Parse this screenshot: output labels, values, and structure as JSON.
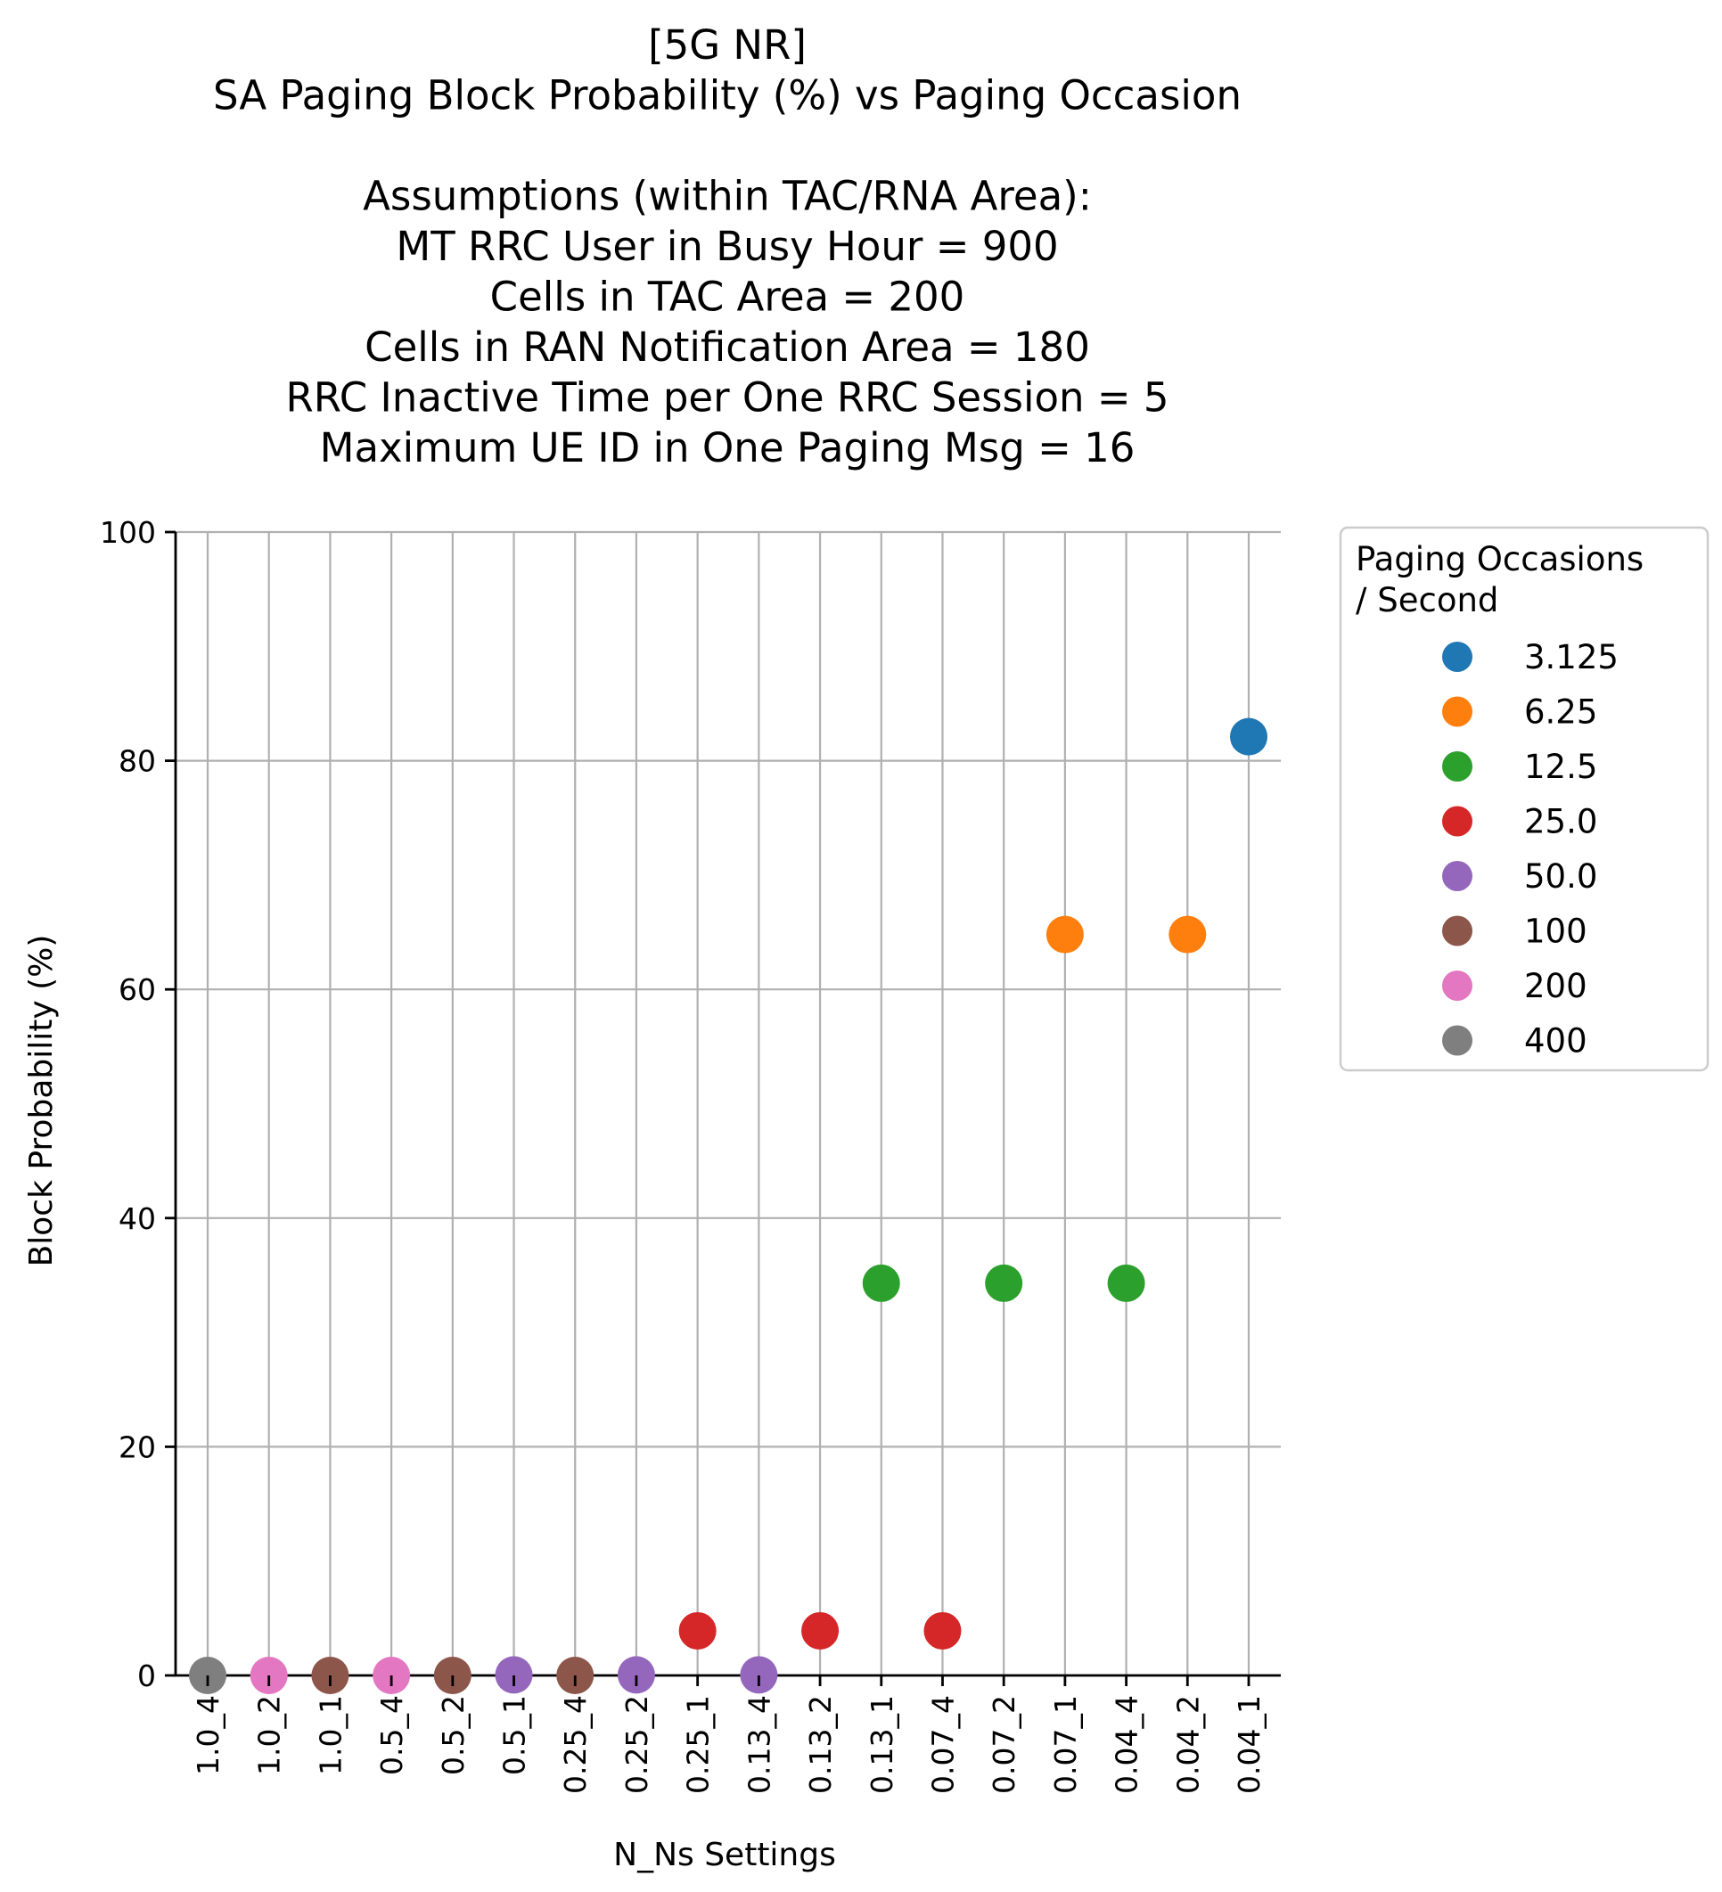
{
  "chart_data": {
    "type": "scatter",
    "title_lines": [
      "[5G NR]",
      "SA Paging Block Probability (%) vs Paging Occasion",
      "",
      "Assumptions (within TAC/RNA Area):",
      "MT RRC User in Busy Hour = 900",
      "Cells in TAC Area = 200",
      "Cells in RAN Notification Area = 180",
      "RRC Inactive Time per One RRC Session = 5",
      "Maximum UE ID in One Paging Msg = 16"
    ],
    "xlabel": "N_Ns Settings",
    "ylabel": "Block Probability (%)",
    "ylim": [
      0,
      100
    ],
    "yticks": [
      "0",
      "20",
      "40",
      "60",
      "80",
      "100"
    ],
    "grid": true,
    "categories": [
      "1.0_4",
      "1.0_2",
      "1.0_1",
      "0.5_4",
      "0.5_2",
      "0.5_1",
      "0.25_4",
      "0.25_2",
      "0.25_1",
      "0.13_4",
      "0.13_2",
      "0.13_1",
      "0.07_4",
      "0.07_2",
      "0.07_1",
      "0.04_4",
      "0.04_2",
      "0.04_1"
    ],
    "legend": {
      "title_lines": [
        "Paging Occasions",
        "/ Second"
      ],
      "placement": "outside-upper-right"
    },
    "series": [
      {
        "name": "3.125",
        "color": "#1f77b4",
        "points": [
          {
            "x": "0.04_1",
            "y": 82.1
          }
        ]
      },
      {
        "name": "6.25",
        "color": "#ff7f0e",
        "points": [
          {
            "x": "0.07_1",
            "y": 64.8
          },
          {
            "x": "0.04_2",
            "y": 64.8
          }
        ]
      },
      {
        "name": "12.5",
        "color": "#2ca02c",
        "points": [
          {
            "x": "0.13_1",
            "y": 34.3
          },
          {
            "x": "0.07_2",
            "y": 34.3
          },
          {
            "x": "0.04_4",
            "y": 34.3
          }
        ]
      },
      {
        "name": "25.0",
        "color": "#d62728",
        "points": [
          {
            "x": "0.25_1",
            "y": 3.9
          },
          {
            "x": "0.13_2",
            "y": 3.9
          },
          {
            "x": "0.07_4",
            "y": 3.9
          }
        ]
      },
      {
        "name": "50.0",
        "color": "#9467bd",
        "points": [
          {
            "x": "0.5_1",
            "y": 0.05
          },
          {
            "x": "0.25_2",
            "y": 0.05
          },
          {
            "x": "0.13_4",
            "y": 0.05
          }
        ]
      },
      {
        "name": "100",
        "color": "#8c564b",
        "points": [
          {
            "x": "1.0_1",
            "y": 0.0
          },
          {
            "x": "0.5_2",
            "y": 0.0
          },
          {
            "x": "0.25_4",
            "y": 0.0
          }
        ]
      },
      {
        "name": "200",
        "color": "#e377c2",
        "points": [
          {
            "x": "1.0_2",
            "y": 0.0
          },
          {
            "x": "0.5_4",
            "y": 0.0
          }
        ]
      },
      {
        "name": "400",
        "color": "#7f7f7f",
        "points": [
          {
            "x": "1.0_4",
            "y": 0.0
          }
        ]
      }
    ]
  }
}
